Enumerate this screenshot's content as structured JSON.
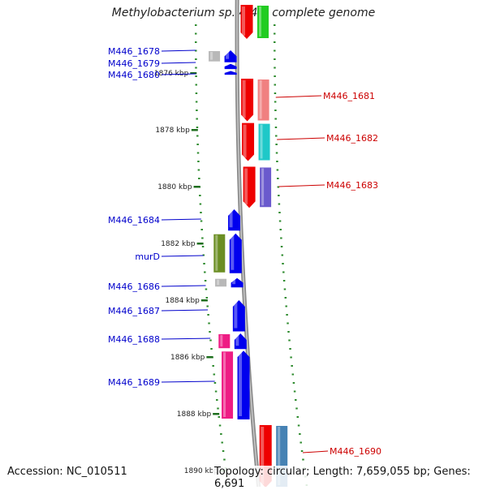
{
  "title": "Methylobacterium sp. 4-46, complete genome",
  "accession": "Accession: NC_010511",
  "stats": "Topology: circular; Length: 7,659,055 bp; Genes: 6,691",
  "scale_ticks": [
    {
      "label": "1876 kbp",
      "kbp": 1876
    },
    {
      "label": "1878 kbp",
      "kbp": 1878
    },
    {
      "label": "1880 kbp",
      "kbp": 1880
    },
    {
      "label": "1882 kbp",
      "kbp": 1882
    },
    {
      "label": "1884 kbp",
      "kbp": 1884
    },
    {
      "label": "1886 kbp",
      "kbp": 1886
    },
    {
      "label": "1888 kbp",
      "kbp": 1888
    },
    {
      "label": "1890 kbp",
      "kbp": 1890
    }
  ],
  "genes": [
    {
      "name": "M446_1678",
      "strand": "reverse",
      "start_kbp": 1875.2,
      "end_kbp": 1875.62,
      "color": "#0000ee",
      "cog_color": "#b8b8b8"
    },
    {
      "name": "M446_1679",
      "strand": "reverse",
      "start_kbp": 1875.68,
      "end_kbp": 1875.86,
      "color": "#0000ee"
    },
    {
      "name": "M446_1680",
      "strand": "reverse",
      "start_kbp": 1875.93,
      "end_kbp": 1876.06,
      "color": "#0000ee"
    },
    {
      "name": "M446_1681",
      "strand": "forward",
      "start_kbp": 1876.2,
      "end_kbp": 1877.7,
      "color": "#ee0000",
      "cog_color": "#f08080"
    },
    {
      "name": "M446_1682",
      "strand": "forward",
      "start_kbp": 1877.76,
      "end_kbp": 1879.1,
      "color": "#ee0000",
      "cog_color": "#1ec8c8"
    },
    {
      "name": "M446_1683",
      "strand": "forward",
      "start_kbp": 1879.3,
      "end_kbp": 1880.75,
      "color": "#ee0000",
      "cog_color": "#6a5acd"
    },
    {
      "name": "M446_1684",
      "strand": "reverse",
      "start_kbp": 1880.8,
      "end_kbp": 1881.55,
      "color": "#0000ee"
    },
    {
      "name": "murD",
      "strand": "reverse",
      "start_kbp": 1881.65,
      "end_kbp": 1883.05,
      "color": "#0000ee",
      "cog_color": "#6b8e23"
    },
    {
      "name": "M446_1686",
      "strand": "reverse",
      "start_kbp": 1883.22,
      "end_kbp": 1883.55,
      "color": "#0000ee",
      "cog_color": "#b8b8b8"
    },
    {
      "name": "M446_1687",
      "strand": "reverse",
      "start_kbp": 1884.0,
      "end_kbp": 1885.1,
      "color": "#0000ee"
    },
    {
      "name": "M446_1688",
      "strand": "reverse",
      "start_kbp": 1885.17,
      "end_kbp": 1885.72,
      "color": "#0000ee",
      "cog_color": "#ee1c84"
    },
    {
      "name": "M446_1689",
      "strand": "reverse",
      "start_kbp": 1885.78,
      "end_kbp": 1888.2,
      "color": "#0000ee",
      "cog_color": "#ee1c84"
    },
    {
      "name": "M446_1690",
      "strand": "forward",
      "start_kbp": 1888.4,
      "end_kbp": 1890.6,
      "color": "#ee0000",
      "cog_color": "#4682b4"
    }
  ],
  "offscreen_top_genes": [
    {
      "strand": "forward",
      "start_kbp": 1873.6,
      "end_kbp": 1874.8,
      "color": "#ee0000",
      "cog_color": "#22cc22"
    }
  ]
}
